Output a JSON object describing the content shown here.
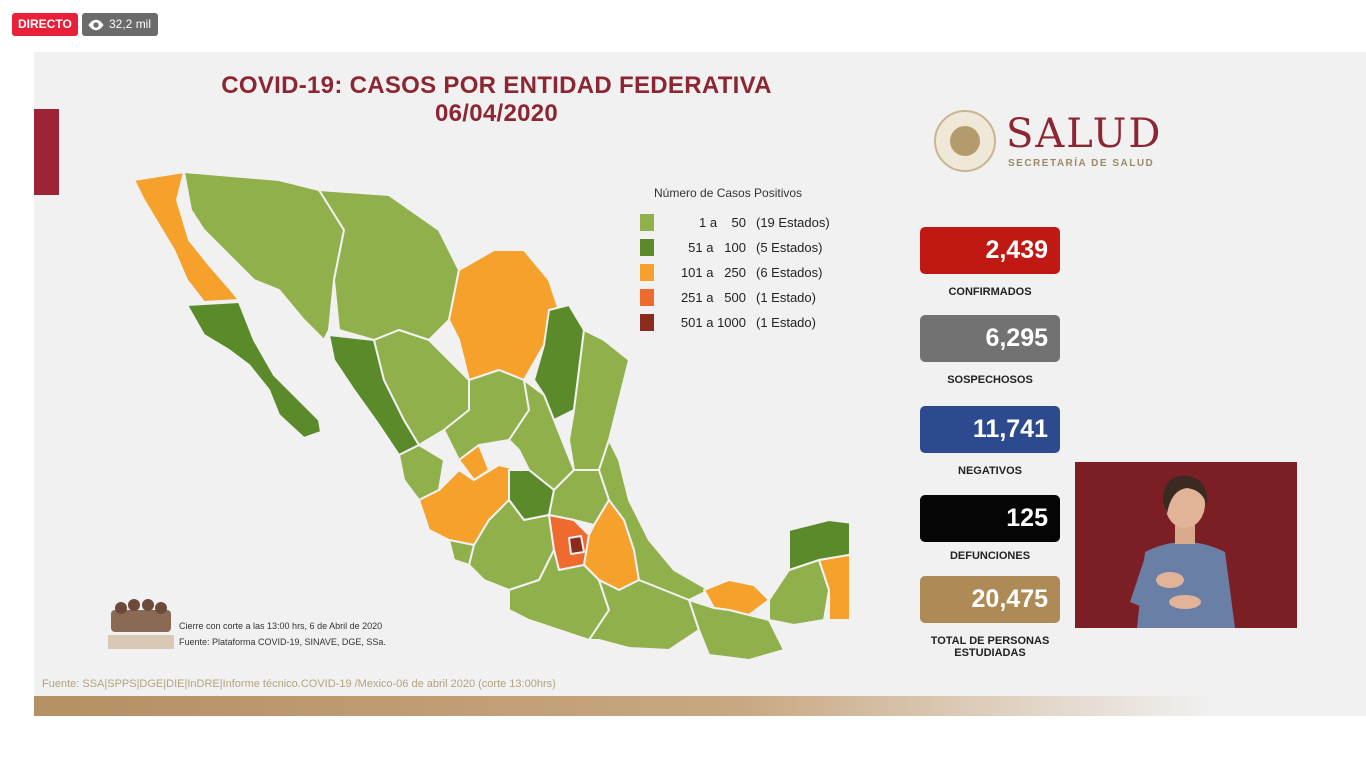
{
  "stream": {
    "live_label": "DIRECTO",
    "views": "32,2 mil",
    "views_icon": "eye-icon"
  },
  "slide": {
    "title_line1": "COVID-19: CASOS POR ENTIDAD FEDERATIVA",
    "title_line2": "06/04/2020",
    "logo_word": "SALUD",
    "logo_sub": "SECRETARÍA DE SALUD",
    "legend": {
      "title": "Número de Casos Positivos",
      "items": [
        {
          "range": "1 a    50",
          "count": "(19 Estados)",
          "color": "#8fb04a"
        },
        {
          "range": "51 a   100",
          "count": "(5 Estados)",
          "color": "#5b8a2a"
        },
        {
          "range": "101 a   250",
          "count": "(6 Estados)",
          "color": "#f5a12c"
        },
        {
          "range": "251 a   500",
          "count": "(1 Estado)",
          "color": "#ef6a2e"
        },
        {
          "range": "501 a 1000",
          "count": "(1 Estado)",
          "color": "#8a2b1e"
        }
      ]
    },
    "stats": [
      {
        "value": "2,439",
        "label": "CONFIRMADOS",
        "color": "#c01813"
      },
      {
        "value": "6,295",
        "label": "SOSPECHOSOS",
        "color": "#727272"
      },
      {
        "value": "11,741",
        "label": "NEGATIVOS",
        "color": "#2d4a8f"
      },
      {
        "value": "125",
        "label": "DEFUNCIONES",
        "color": "#050505"
      },
      {
        "value": "20,475",
        "label": "TOTAL DE PERSONAS ESTUDIADAS",
        "color": "#ae8b56"
      }
    ],
    "footnote_line1": "Cierre con corte a las 13:00 hrs, 6 de Abril de 2020",
    "footnote_line2": "Fuente: Plataforma COVID-19, SINAVE, DGE, SSa.",
    "source_line": "Fuente: SSA|SPPS|DGE|DIE|InDRE|Informe técnico.COVID-19 /Mexico-06 de abril 2020 (corte 13:00hrs)"
  },
  "colors": {
    "accent": "#8c2633",
    "gold": "#b49062"
  }
}
